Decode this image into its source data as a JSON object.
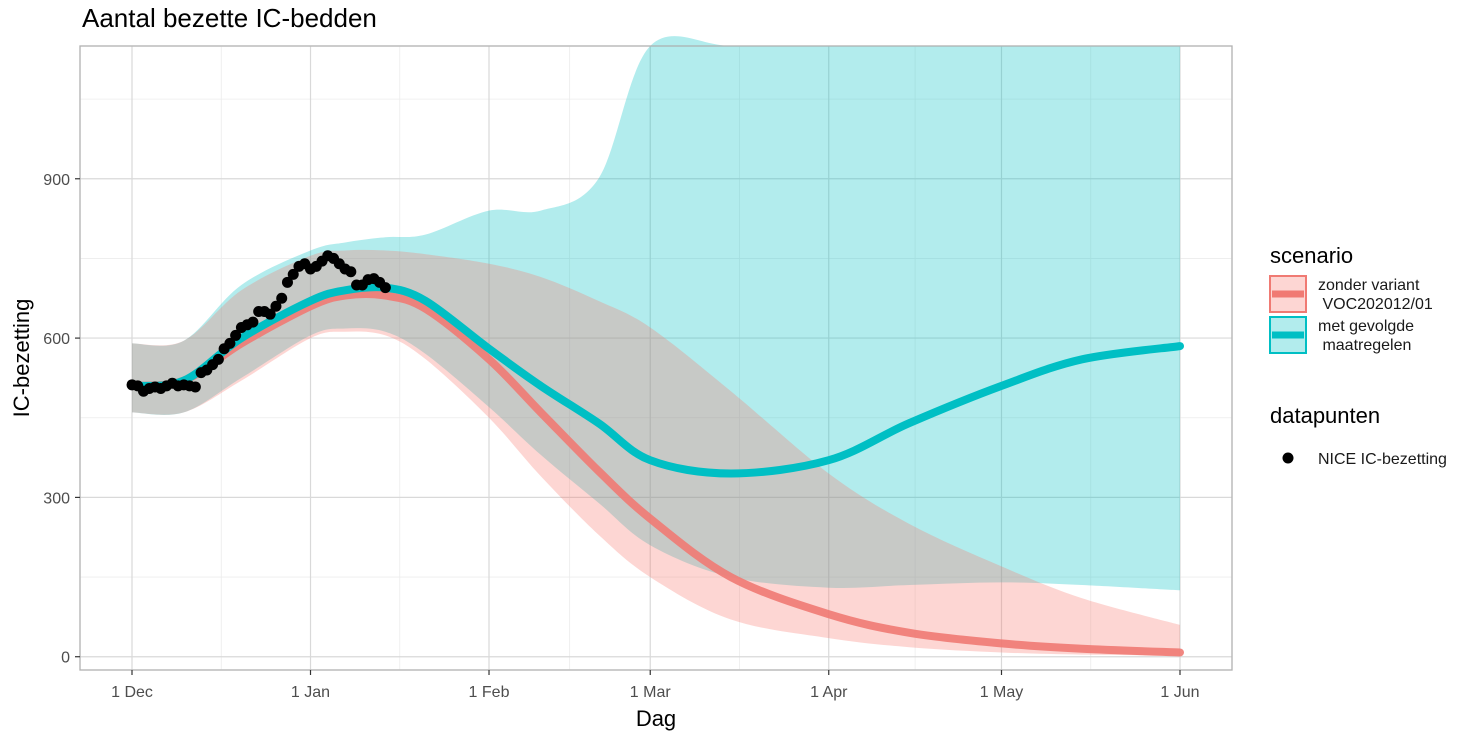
{
  "chart_data": {
    "type": "line",
    "title": "Aantal bezette IC-bedden",
    "xlabel": "Dag",
    "ylabel": "IC-bezetting",
    "x_tick_labels": [
      "1 Dec",
      "1 Jan",
      "1 Feb",
      "1 Mar",
      "1 Apr",
      "1 May",
      "1 Jun"
    ],
    "y_ticks": [
      0,
      300,
      600,
      900
    ],
    "ylim": [
      -25,
      1150
    ],
    "grid": true,
    "legend_position": "right",
    "series": [
      {
        "name": "zonder variant\n VOC202012/01",
        "color": "#f07a73",
        "fill": "#f8766d",
        "x": [
          "2020-12-01",
          "2020-12-10",
          "2020-12-20",
          "2021-01-01",
          "2021-01-07",
          "2021-01-14",
          "2021-01-21",
          "2021-02-01",
          "2021-02-10",
          "2021-02-20",
          "2021-03-01",
          "2021-03-15",
          "2021-04-01",
          "2021-04-15",
          "2021-05-01",
          "2021-05-15",
          "2021-06-01"
        ],
        "y": [
          510,
          520,
          590,
          660,
          680,
          680,
          655,
          560,
          460,
          350,
          260,
          150,
          80,
          45,
          25,
          15,
          8
        ],
        "lower": [
          460,
          460,
          520,
          600,
          612,
          605,
          560,
          450,
          340,
          230,
          150,
          70,
          35,
          18,
          8,
          4,
          2
        ],
        "upper": [
          590,
          595,
          690,
          755,
          765,
          765,
          758,
          740,
          715,
          670,
          620,
          500,
          345,
          250,
          170,
          110,
          60
        ]
      },
      {
        "name": "met gevolgde\n maatregelen",
        "color": "#00bfc4",
        "fill": "#00bfc4",
        "x": [
          "2020-12-01",
          "2020-12-10",
          "2020-12-20",
          "2021-01-01",
          "2021-01-07",
          "2021-01-14",
          "2021-01-21",
          "2021-02-01",
          "2021-02-10",
          "2021-02-20",
          "2021-03-01",
          "2021-03-15",
          "2021-04-01",
          "2021-04-15",
          "2021-05-01",
          "2021-05-15",
          "2021-06-01"
        ],
        "y": [
          510,
          520,
          600,
          670,
          690,
          695,
          670,
          580,
          510,
          440,
          370,
          345,
          370,
          440,
          510,
          560,
          585
        ],
        "lower": [
          460,
          460,
          525,
          605,
          618,
          612,
          570,
          470,
          380,
          290,
          210,
          150,
          130,
          135,
          140,
          135,
          125
        ],
        "upper": [
          590,
          595,
          700,
          765,
          780,
          790,
          795,
          840,
          840,
          900,
          1150,
          1150,
          1150,
          1150,
          1150,
          1150,
          1150
        ]
      }
    ],
    "points": {
      "name": "NICE IC-bezetting",
      "color": "#000000",
      "x": [
        "2020-12-01",
        "2020-12-02",
        "2020-12-03",
        "2020-12-04",
        "2020-12-05",
        "2020-12-06",
        "2020-12-07",
        "2020-12-08",
        "2020-12-09",
        "2020-12-10",
        "2020-12-11",
        "2020-12-12",
        "2020-12-13",
        "2020-12-14",
        "2020-12-15",
        "2020-12-16",
        "2020-12-17",
        "2020-12-18",
        "2020-12-19",
        "2020-12-20",
        "2020-12-21",
        "2020-12-22",
        "2020-12-23",
        "2020-12-24",
        "2020-12-25",
        "2020-12-26",
        "2020-12-27",
        "2020-12-28",
        "2020-12-29",
        "2020-12-30",
        "2020-12-31",
        "2021-01-01",
        "2021-01-02",
        "2021-01-03",
        "2021-01-04",
        "2021-01-05",
        "2021-01-06",
        "2021-01-07",
        "2021-01-08",
        "2021-01-09",
        "2021-01-10",
        "2021-01-11",
        "2021-01-12",
        "2021-01-13",
        "2021-01-14"
      ],
      "y": [
        512,
        510,
        500,
        505,
        508,
        505,
        510,
        515,
        510,
        512,
        510,
        508,
        535,
        540,
        550,
        560,
        580,
        590,
        605,
        620,
        625,
        630,
        650,
        650,
        645,
        660,
        675,
        705,
        720,
        735,
        740,
        730,
        735,
        745,
        755,
        750,
        740,
        730,
        725,
        700,
        700,
        710,
        712,
        705,
        695
      ]
    },
    "legend": {
      "scenario_title": "scenario",
      "scenario_items": [
        "zonder variant\n VOC202012/01",
        "met gevolgde\n maatregelen"
      ],
      "points_title": "datapunten",
      "points_item": "NICE IC-bezetting"
    }
  }
}
